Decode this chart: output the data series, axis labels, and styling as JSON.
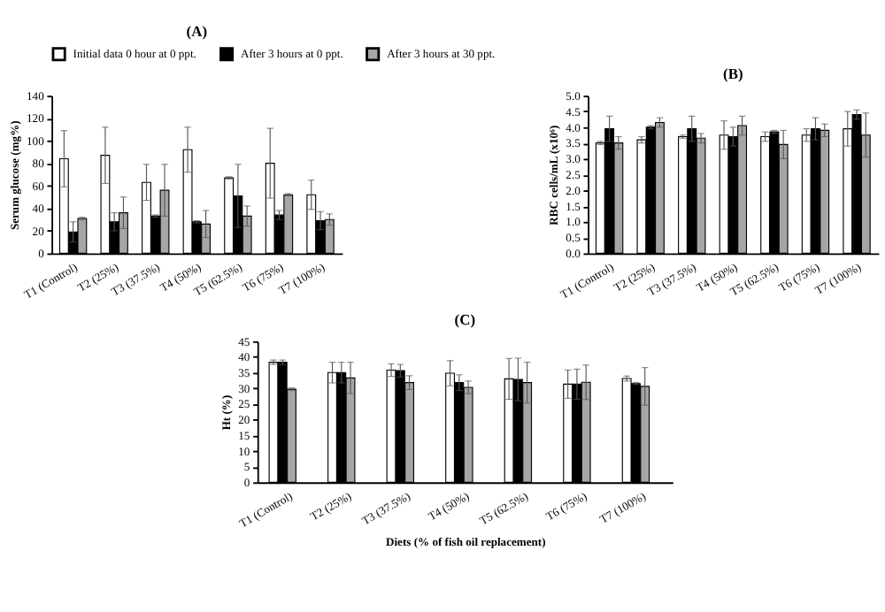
{
  "chart_data": [
    {
      "type": "bar",
      "title": "(A)",
      "ylabel": "Serum glucose (mg%)",
      "categories": [
        "T1 (Control)",
        "T2 (25%)",
        "T3 (37.5%)",
        "T4 (50%)",
        "T5 (62.5%)",
        "T6 (75%)",
        "T7 (100%)"
      ],
      "ylim": [
        0,
        140
      ],
      "yticks": [
        0,
        20,
        40,
        60,
        80,
        100,
        120,
        140
      ],
      "legend": "top",
      "grid": false,
      "series": [
        {
          "name": "Initial data 0 hour at 0 ppt.",
          "color": "#ffffff",
          "values": [
            84,
            87,
            63,
            92,
            67,
            80,
            52
          ],
          "errors": [
            25,
            25,
            16,
            20,
            1,
            31,
            13
          ]
        },
        {
          "name": "After 3 hours at 0 ppt.",
          "color": "#000000",
          "values": [
            19,
            28,
            33,
            28,
            51,
            34,
            29
          ],
          "errors": [
            9,
            8,
            1,
            1,
            28,
            4,
            8
          ]
        },
        {
          "name": "After 3 hours at 30 ppt.",
          "color": "#a6a6a6",
          "values": [
            31,
            36,
            56,
            26,
            33,
            52,
            30
          ],
          "errors": [
            1,
            14,
            23,
            12,
            9,
            1,
            5
          ]
        }
      ]
    },
    {
      "type": "bar",
      "title": "(B)",
      "ylabel": "RBC cells/mL (x10⁶)",
      "categories": [
        "T1 (Control)",
        "T2 (25%)",
        "T3 (37.5%)",
        "T4 (50%)",
        "T5 (62.5%)",
        "T6 (75%)",
        "T7 (100%)"
      ],
      "ylim": [
        0,
        5.0
      ],
      "yticks": [
        {
          "value": 0,
          "label": "0.0"
        },
        0.5,
        {
          "value": 1,
          "label": "1.0"
        },
        1.5,
        {
          "value": 2,
          "label": "2.0"
        },
        2.5,
        {
          "value": 3,
          "label": "3.0"
        },
        3.5,
        {
          "value": 4,
          "label": "4.0"
        },
        4.5,
        {
          "value": 5,
          "label": "5.0"
        }
      ],
      "grid": false,
      "series": [
        {
          "color": "#ffffff",
          "values": [
            3.5,
            3.6,
            3.7,
            3.75,
            3.7,
            3.75,
            3.95
          ],
          "errors": [
            0.05,
            0.1,
            0.05,
            0.45,
            0.15,
            0.2,
            0.55
          ]
        },
        {
          "color": "#000000",
          "values": [
            3.95,
            4.0,
            3.95,
            3.7,
            3.85,
            3.95,
            4.4
          ],
          "errors": [
            0.4,
            0.05,
            0.4,
            0.3,
            0.05,
            0.35,
            0.15
          ]
        },
        {
          "color": "#a6a6a6",
          "values": [
            3.5,
            4.15,
            3.65,
            4.05,
            3.45,
            3.9,
            3.75
          ],
          "errors": [
            0.2,
            0.15,
            0.15,
            0.3,
            0.45,
            0.2,
            0.7
          ]
        }
      ]
    },
    {
      "type": "bar",
      "title": "(C)",
      "ylabel": "Ht (%)",
      "xlabel": "Diets (% of fish oil replacement)",
      "categories": [
        "T1 (Control)",
        "T2 (25%)",
        "T3 (37.5%)",
        "T4 (50%)",
        "T5 (62.5%)",
        "T6 (75%)",
        "T7 (100%)"
      ],
      "ylim": [
        0,
        45
      ],
      "yticks": [
        0,
        5,
        10,
        15,
        20,
        25,
        30,
        35,
        40,
        45
      ],
      "grid": false,
      "series": [
        {
          "color": "#ffffff",
          "values": [
            38.3,
            35,
            35.8,
            34.8,
            33,
            31.3,
            33.1
          ],
          "errors": [
            0.7,
            3.3,
            2,
            4,
            6.5,
            4.5,
            0.8
          ]
        },
        {
          "color": "#000000",
          "values": [
            38.3,
            35,
            35.6,
            31.8,
            32.8,
            31.3,
            31.5
          ],
          "errors": [
            0.7,
            3.3,
            2,
            2.5,
            6.8,
            4.8,
            0.3
          ]
        },
        {
          "color": "#a6a6a6",
          "values": [
            29.7,
            33.3,
            31.8,
            30.3,
            31.8,
            31.9,
            30.6
          ],
          "errors": [
            0.4,
            5,
            2.2,
            2,
            6.5,
            5.5,
            6
          ]
        }
      ]
    }
  ]
}
